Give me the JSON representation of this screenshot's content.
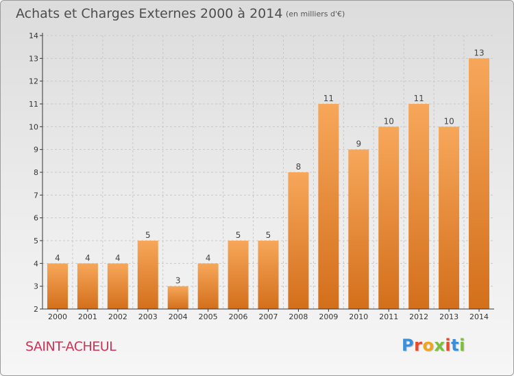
{
  "header": {
    "title": "Achats et Charges Externes 2000 à 2014",
    "subtitle": "(en milliers d'€)"
  },
  "footer": {
    "town": "SAINT-ACHEUL",
    "brand_letters": [
      "P",
      "r",
      "o",
      "x",
      "i",
      "t",
      "i"
    ],
    "brand_colors": [
      "#3a8fd8",
      "#e84a2e",
      "#f2a41b",
      "#7cbf3a",
      "#e84a2e",
      "#3a8fd8",
      "#7cbf3a"
    ]
  },
  "colors": {
    "bar_light": "#f7a75a",
    "bar_dark": "#d36f1b",
    "axis": "#333333",
    "grid": "#c8c8c8",
    "town": "#cc3355"
  },
  "chart_data": {
    "type": "bar",
    "title": "Achats et Charges Externes 2000 à 2014",
    "subtitle": "(en milliers d'€)",
    "categories": [
      "2000",
      "2001",
      "2002",
      "2003",
      "2004",
      "2005",
      "2006",
      "2007",
      "2008",
      "2009",
      "2010",
      "2011",
      "2012",
      "2013",
      "2014"
    ],
    "values": [
      4,
      4,
      4,
      5,
      3,
      4,
      5,
      5,
      8,
      11,
      9,
      10,
      11,
      10,
      13
    ],
    "ylim": [
      2,
      14
    ],
    "yticks": [
      2,
      3,
      4,
      5,
      6,
      7,
      8,
      9,
      10,
      11,
      12,
      13,
      14
    ],
    "grid": true,
    "legend": "none"
  }
}
